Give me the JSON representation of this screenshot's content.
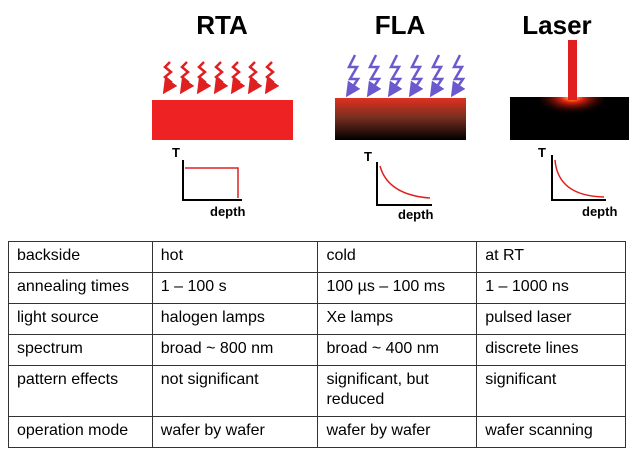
{
  "headings": [
    "RTA",
    "FLA",
    "Laser"
  ],
  "graphs": [
    {
      "y_label": "T",
      "x_label": "depth"
    },
    {
      "y_label": "T",
      "x_label": "depth"
    },
    {
      "y_label": "T",
      "x_label": "depth"
    }
  ],
  "table": {
    "rows": [
      [
        "backside",
        "hot",
        "cold",
        "at  RT"
      ],
      [
        "annealing times",
        "1 –  100 s",
        "100 µs – 100 ms",
        "1 – 1000 ns"
      ],
      [
        "light source",
        "halogen lamps",
        "Xe lamps",
        "pulsed laser"
      ],
      [
        "spectrum",
        "broad ~ 800 nm",
        "broad ~ 400 nm",
        "discrete lines"
      ],
      [
        "pattern effects",
        "not significant",
        "significant, but reduced",
        "significant"
      ],
      [
        "operation mode",
        "wafer by wafer",
        "wafer by wafer",
        "wafer scanning"
      ]
    ]
  }
}
